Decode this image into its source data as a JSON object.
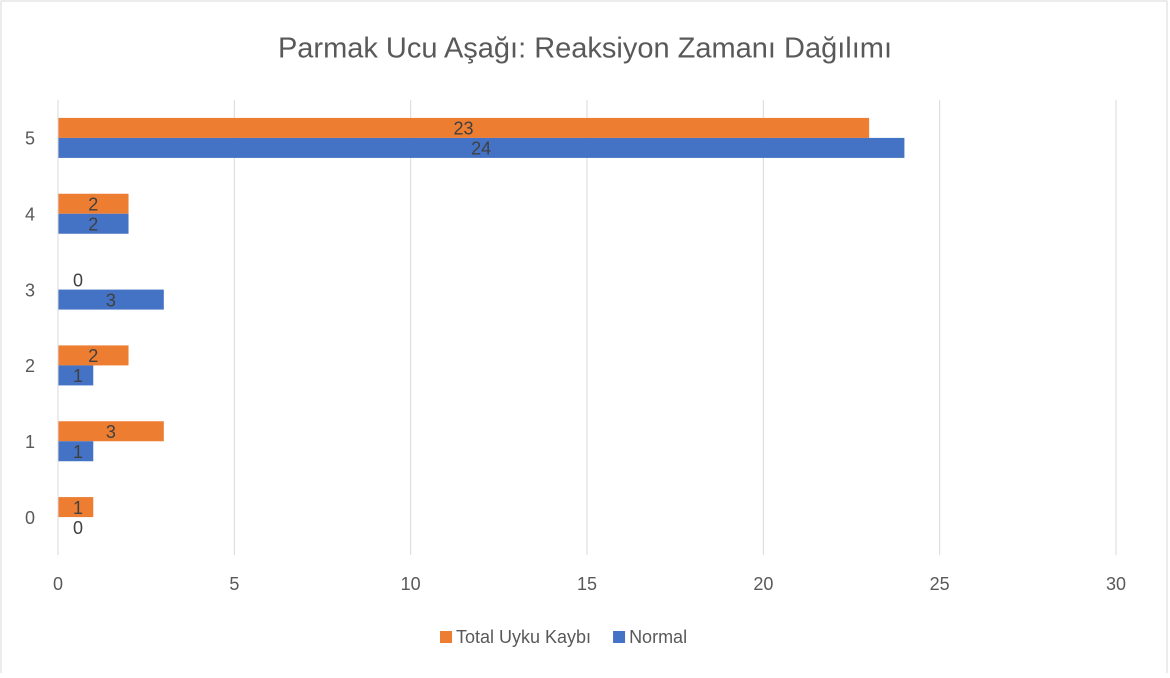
{
  "chart_data": {
    "type": "bar",
    "orientation": "horizontal",
    "title": "Parmak Ucu Aşağı: Reaksiyon Zamanı Dağılımı",
    "categories": [
      "0",
      "1",
      "2",
      "3",
      "4",
      "5"
    ],
    "series": [
      {
        "name": "Total Uyku Kaybı",
        "color": "#ed7d31",
        "values": [
          1,
          3,
          2,
          0,
          2,
          23
        ]
      },
      {
        "name": "Normal",
        "color": "#4472c4",
        "values": [
          0,
          1,
          1,
          3,
          2,
          24
        ]
      }
    ],
    "xlim": [
      0,
      30
    ],
    "xticks": [
      0,
      5,
      10,
      15,
      20,
      25,
      30
    ],
    "grid": true,
    "legend": "bottom",
    "data_labels": true
  }
}
